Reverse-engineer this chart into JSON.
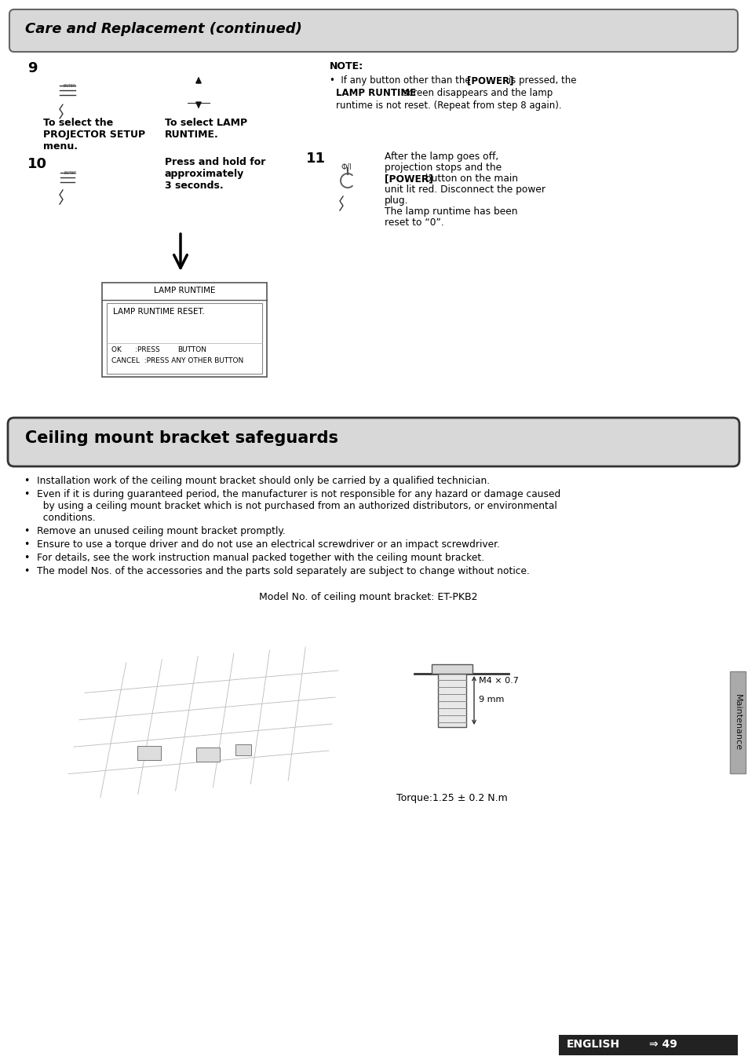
{
  "bg_color": "#ffffff",
  "section1_title": "Care and Replacement (continued)",
  "section1_bg": "#d8d8d8",
  "section2_title": "Ceiling mount bracket safeguards",
  "section2_bg": "#d8d8d8",
  "step9_label": "9",
  "step10_label": "10",
  "step11_label": "11",
  "note_title": "NOTE:",
  "step9_text1": "To select the\nPROJECTOR SETUP\nmenu.",
  "step9_text2": "To select LAMP\nRUNTIME.",
  "step10_text": "Press and hold for\napproximately\n3 seconds.",
  "step11_text_parts": [
    [
      "After the lamp goes off,",
      false
    ],
    [
      "projection stops and the",
      false
    ],
    [
      "[POWER]",
      true
    ],
    [
      " button on the main",
      false
    ],
    [
      "unit lit red. Disconnect the power",
      false
    ],
    [
      "plug.",
      false
    ],
    [
      "The lamp runtime has been",
      false
    ],
    [
      "reset to “0”.",
      false
    ]
  ],
  "lamp_runtime_box_title": "LAMP RUNTIME",
  "lamp_runtime_box_content": "LAMP RUNTIME RESET.",
  "lamp_runtime_cancel": "CANCEL  :PRESS ANY OTHER BUTTON",
  "bullet_points": [
    [
      "Installation work of the ceiling mount bracket should only be carried by a qualified technician.",
      []
    ],
    [
      "Even if it is during guaranteed period, the manufacturer is not responsible for any hazard or damage caused",
      [
        "  by using a ceiling mount bracket which is not purchased from an authorized distributors, or environmental",
        "  conditions."
      ]
    ],
    [
      "Remove an unused ceiling mount bracket promptly.",
      []
    ],
    [
      "Ensure to use a torque driver and do not use an electrical screwdriver or an impact screwdriver.",
      []
    ],
    [
      "For details, see the work instruction manual packed together with the ceiling mount bracket.",
      []
    ],
    [
      "The model Nos. of the accessories and the parts sold separately are subject to change without notice.",
      []
    ]
  ],
  "model_text": "Model No. of ceiling mount bracket: ET-PKB2",
  "torque_text": "Torque:1.25 ± 0.2 N.m",
  "m4_text": "M4 × 0.7",
  "mm9_text": "9 mm",
  "maintenance_text": "Maintenance",
  "english_text": "ENGLISH",
  "arrow_sym": "⇒",
  "page_num": "49"
}
